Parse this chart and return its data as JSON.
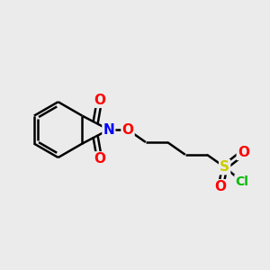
{
  "bg_color": "#ebebeb",
  "bond_color": "#000000",
  "bond_width": 1.8,
  "atom_colors": {
    "O": "#ff0000",
    "N": "#0000ff",
    "S": "#cccc00",
    "Cl": "#00bb00",
    "C": "#000000"
  },
  "font_size_atoms": 11
}
